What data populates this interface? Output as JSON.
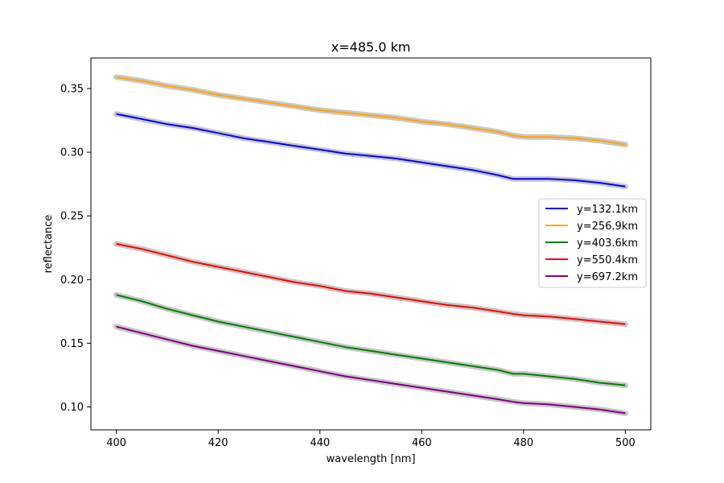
{
  "chart_data": {
    "type": "line",
    "title": "x=485.0 km",
    "xlabel": "wavelength [nm]",
    "ylabel": "reflectance",
    "xlim": [
      395,
      505
    ],
    "ylim": [
      0.082,
      0.374
    ],
    "xticks": [
      400,
      420,
      440,
      460,
      480,
      500
    ],
    "yticks": [
      0.1,
      0.15,
      0.2,
      0.25,
      0.3,
      0.35
    ],
    "xtick_labels": [
      "400",
      "420",
      "440",
      "460",
      "480",
      "500"
    ],
    "ytick_labels": [
      "0.10",
      "0.15",
      "0.20",
      "0.25",
      "0.30",
      "0.35"
    ],
    "grid": false,
    "legend_position": "center-right",
    "band_color": "#c8c8c8",
    "series": [
      {
        "name": "y=132.1km",
        "color": "#0000ff",
        "x": [
          400,
          405,
          410,
          415,
          420,
          425,
          430,
          435,
          440,
          445,
          450,
          455,
          460,
          465,
          470,
          475,
          478,
          480,
          485,
          490,
          495,
          500
        ],
        "values": [
          0.33,
          0.326,
          0.322,
          0.319,
          0.315,
          0.311,
          0.308,
          0.305,
          0.302,
          0.299,
          0.297,
          0.295,
          0.292,
          0.289,
          0.286,
          0.282,
          0.279,
          0.279,
          0.279,
          0.278,
          0.276,
          0.273
        ]
      },
      {
        "name": "y=256.9km",
        "color": "#ffa500",
        "x": [
          400,
          405,
          410,
          415,
          420,
          425,
          430,
          435,
          440,
          445,
          450,
          455,
          460,
          465,
          470,
          475,
          478,
          480,
          485,
          490,
          495,
          500
        ],
        "values": [
          0.359,
          0.356,
          0.352,
          0.349,
          0.345,
          0.342,
          0.339,
          0.336,
          0.333,
          0.331,
          0.329,
          0.327,
          0.324,
          0.322,
          0.319,
          0.316,
          0.313,
          0.312,
          0.312,
          0.311,
          0.309,
          0.306
        ]
      },
      {
        "name": "y=403.6km",
        "color": "#008000",
        "x": [
          400,
          405,
          410,
          415,
          420,
          425,
          430,
          435,
          440,
          445,
          450,
          455,
          460,
          465,
          470,
          475,
          478,
          480,
          485,
          490,
          495,
          500
        ],
        "values": [
          0.188,
          0.183,
          0.177,
          0.172,
          0.167,
          0.163,
          0.159,
          0.155,
          0.151,
          0.147,
          0.144,
          0.141,
          0.138,
          0.135,
          0.132,
          0.129,
          0.126,
          0.126,
          0.124,
          0.122,
          0.119,
          0.117
        ]
      },
      {
        "name": "y=550.4km",
        "color": "#ff0000",
        "x": [
          400,
          405,
          410,
          415,
          420,
          425,
          430,
          435,
          440,
          445,
          450,
          455,
          460,
          465,
          470,
          475,
          478,
          480,
          485,
          490,
          495,
          500
        ],
        "values": [
          0.228,
          0.224,
          0.219,
          0.214,
          0.21,
          0.206,
          0.202,
          0.198,
          0.195,
          0.191,
          0.189,
          0.186,
          0.183,
          0.18,
          0.178,
          0.175,
          0.173,
          0.172,
          0.171,
          0.169,
          0.167,
          0.165
        ]
      },
      {
        "name": "y=697.2km",
        "color": "#800080",
        "x": [
          400,
          405,
          410,
          415,
          420,
          425,
          430,
          435,
          440,
          445,
          450,
          455,
          460,
          465,
          470,
          475,
          478,
          480,
          485,
          490,
          495,
          500
        ],
        "values": [
          0.163,
          0.158,
          0.153,
          0.148,
          0.144,
          0.14,
          0.136,
          0.132,
          0.128,
          0.124,
          0.121,
          0.118,
          0.115,
          0.112,
          0.109,
          0.106,
          0.104,
          0.103,
          0.102,
          0.1,
          0.098,
          0.095
        ]
      }
    ]
  }
}
